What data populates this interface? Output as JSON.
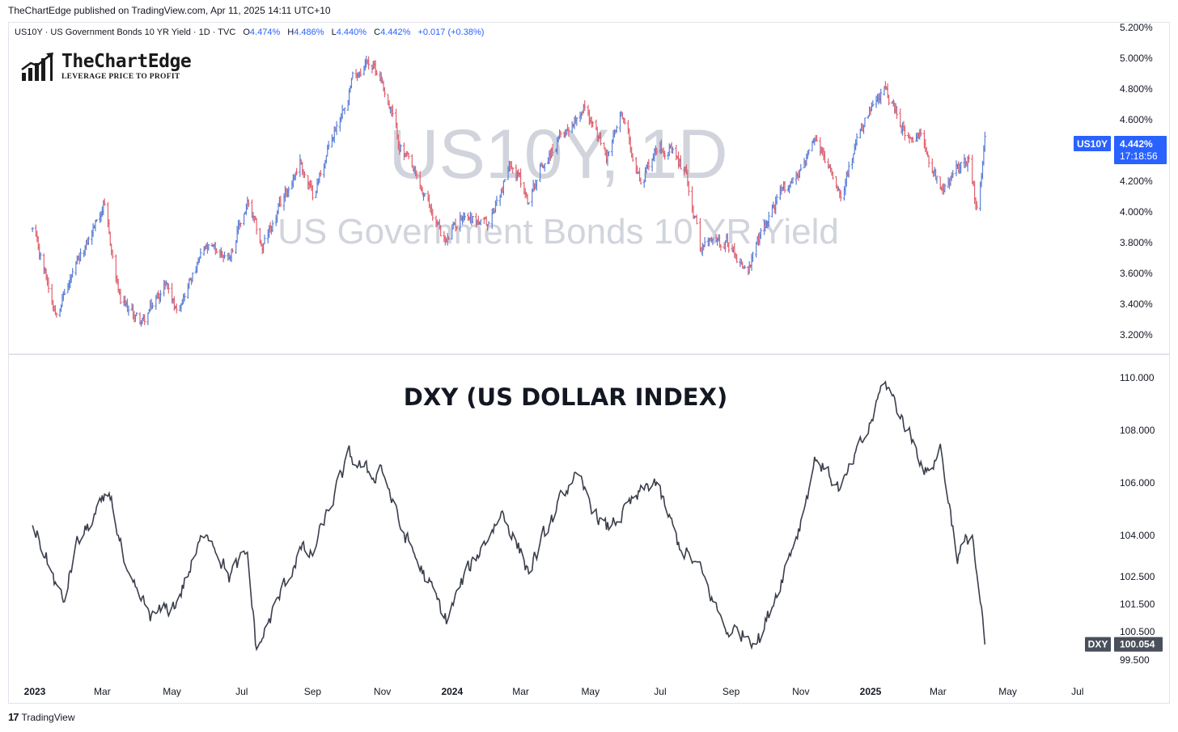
{
  "header": {
    "published": "TheChartEdge published on TradingView.com, Apr 11, 2025 14:11 UTC+10"
  },
  "legend": {
    "symbol": "US10Y · US Government Bonds 10 YR Yield · 1D · TVC",
    "o_label": "O",
    "o": "4.474%",
    "h_label": "H",
    "h": "4.486%",
    "l_label": "L",
    "l": "4.440%",
    "c_label": "C",
    "c": "4.442%",
    "change": "+0.017 (+0.38%)"
  },
  "logo": {
    "name": "TheChartEdge",
    "tagline": "LEVERAGE PRICE TO PROFIT",
    "icon": "bar-chart-arrow-icon"
  },
  "footer": {
    "brand": "TradingView",
    "icon": "tradingview-logo-icon"
  },
  "colors": {
    "up": "#5b7fd6",
    "down": "#e0626f",
    "line": "#3a3f4b",
    "accent": "#2962ff",
    "watermark": "#d1d4dc",
    "dxy_badge": "#4a4f5c"
  },
  "chart_data": [
    {
      "type": "ohlc",
      "symbol": "US10Y",
      "watermark": "US10Y, 1D",
      "watermark_sub": "US Government Bonds 10 YR Yield",
      "y_ticks": [
        "5.200%",
        "5.000%",
        "4.800%",
        "4.600%",
        "4.400%",
        "4.200%",
        "4.000%",
        "3.800%",
        "3.600%",
        "3.400%",
        "3.200%"
      ],
      "ylim": [
        3.1,
        5.3
      ],
      "last_label": "US10Y",
      "last_value": "4.442%",
      "countdown": "17:18:56",
      "keypoints": [
        [
          "2022-12-30",
          3.88
        ],
        [
          "2023-01-19",
          3.37
        ],
        [
          "2023-02-08",
          3.65
        ],
        [
          "2023-03-02",
          4.05
        ],
        [
          "2023-03-17",
          3.4
        ],
        [
          "2023-04-06",
          3.28
        ],
        [
          "2023-04-26",
          3.55
        ],
        [
          "2023-05-04",
          3.37
        ],
        [
          "2023-05-30",
          3.75
        ],
        [
          "2023-06-20",
          3.72
        ],
        [
          "2023-07-06",
          4.05
        ],
        [
          "2023-07-19",
          3.76
        ],
        [
          "2023-08-21",
          4.34
        ],
        [
          "2023-09-01",
          4.1
        ],
        [
          "2023-10-06",
          4.88
        ],
        [
          "2023-10-19",
          4.99
        ],
        [
          "2023-10-31",
          4.88
        ],
        [
          "2023-11-16",
          4.44
        ],
        [
          "2023-12-06",
          4.12
        ],
        [
          "2023-12-27",
          3.8
        ],
        [
          "2024-01-11",
          4.0
        ],
        [
          "2024-02-01",
          3.9
        ],
        [
          "2024-02-22",
          4.33
        ],
        [
          "2024-03-08",
          4.08
        ],
        [
          "2024-03-19",
          4.3
        ],
        [
          "2024-04-25",
          4.7
        ],
        [
          "2024-05-15",
          4.36
        ],
        [
          "2024-05-29",
          4.62
        ],
        [
          "2024-06-14",
          4.2
        ],
        [
          "2024-07-01",
          4.47
        ],
        [
          "2024-07-24",
          4.25
        ],
        [
          "2024-08-05",
          3.78
        ],
        [
          "2024-08-27",
          3.82
        ],
        [
          "2024-09-16",
          3.62
        ],
        [
          "2024-10-07",
          4.03
        ],
        [
          "2024-10-31",
          4.28
        ],
        [
          "2024-11-14",
          4.45
        ],
        [
          "2024-12-06",
          4.15
        ],
        [
          "2024-12-27",
          4.58
        ],
        [
          "2025-01-14",
          4.79
        ],
        [
          "2025-02-06",
          4.43
        ],
        [
          "2025-02-14",
          4.48
        ],
        [
          "2025-03-04",
          4.16
        ],
        [
          "2025-03-27",
          4.36
        ],
        [
          "2025-04-04",
          4.0
        ],
        [
          "2025-04-11",
          4.44
        ]
      ]
    },
    {
      "type": "line",
      "symbol": "DXY",
      "title": "DXY (US DOLLAR INDEX)",
      "y_ticks": [
        "110.000",
        "108.000",
        "106.000",
        "104.000",
        "102.500",
        "101.500",
        "100.500",
        "99.500"
      ],
      "ylim": [
        99.0,
        110.6
      ],
      "last_label": "DXY",
      "last_value": "100.054",
      "keypoints": [
        [
          "2022-12-30",
          104.5
        ],
        [
          "2023-01-26",
          101.5
        ],
        [
          "2023-02-06",
          103.6
        ],
        [
          "2023-03-08",
          105.6
        ],
        [
          "2023-03-23",
          102.3
        ],
        [
          "2023-04-14",
          101.0
        ],
        [
          "2023-05-04",
          101.5
        ],
        [
          "2023-06-01",
          104.3
        ],
        [
          "2023-06-20",
          102.5
        ],
        [
          "2023-07-06",
          103.3
        ],
        [
          "2023-07-14",
          99.8
        ],
        [
          "2023-08-21",
          103.5
        ],
        [
          "2023-08-31",
          103.2
        ],
        [
          "2023-10-03",
          107.0
        ],
        [
          "2023-10-24",
          106.2
        ],
        [
          "2023-10-31",
          106.7
        ],
        [
          "2023-11-16",
          104.4
        ],
        [
          "2023-12-27",
          100.9
        ],
        [
          "2024-01-11",
          102.4
        ],
        [
          "2024-02-14",
          104.9
        ],
        [
          "2024-03-08",
          102.7
        ],
        [
          "2024-04-16",
          106.3
        ],
        [
          "2024-05-15",
          104.2
        ],
        [
          "2024-06-26",
          106.1
        ],
        [
          "2024-07-17",
          103.7
        ],
        [
          "2024-08-05",
          102.7
        ],
        [
          "2024-08-27",
          100.6
        ],
        [
          "2024-09-27",
          100.3
        ],
        [
          "2024-10-31",
          104.4
        ],
        [
          "2024-11-14",
          107.0
        ],
        [
          "2024-12-06",
          105.7
        ],
        [
          "2024-12-30",
          108.0
        ],
        [
          "2025-01-13",
          109.9
        ],
        [
          "2025-02-06",
          107.7
        ],
        [
          "2025-02-20",
          106.3
        ],
        [
          "2025-03-03",
          107.4
        ],
        [
          "2025-03-18",
          103.2
        ],
        [
          "2025-03-31",
          104.1
        ],
        [
          "2025-04-04",
          102.5
        ],
        [
          "2025-04-11",
          100.05
        ]
      ]
    }
  ],
  "x_axis": {
    "ticks": [
      {
        "label": "2023",
        "date": "2023-01-01",
        "bold": true
      },
      {
        "label": "Mar",
        "date": "2023-03-01"
      },
      {
        "label": "May",
        "date": "2023-05-01"
      },
      {
        "label": "Jul",
        "date": "2023-07-01"
      },
      {
        "label": "Sep",
        "date": "2023-09-01"
      },
      {
        "label": "Nov",
        "date": "2023-11-01"
      },
      {
        "label": "2024",
        "date": "2024-01-01",
        "bold": true
      },
      {
        "label": "Mar",
        "date": "2024-03-01"
      },
      {
        "label": "May",
        "date": "2024-05-01"
      },
      {
        "label": "Jul",
        "date": "2024-07-01"
      },
      {
        "label": "Sep",
        "date": "2024-09-01"
      },
      {
        "label": "Nov",
        "date": "2024-11-01"
      },
      {
        "label": "2025",
        "date": "2025-01-01",
        "bold": true
      },
      {
        "label": "Mar",
        "date": "2025-03-01"
      },
      {
        "label": "May",
        "date": "2025-05-01"
      },
      {
        "label": "Jul",
        "date": "2025-07-01"
      }
    ]
  }
}
